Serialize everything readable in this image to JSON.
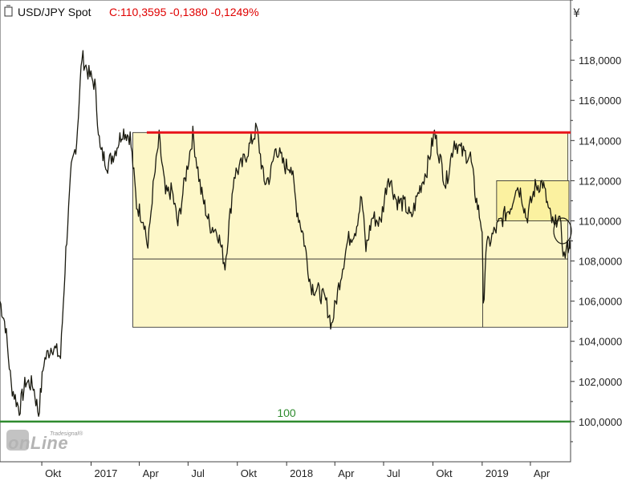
{
  "header": {
    "icon": "page-icon",
    "symbol": "USD/JPY Spot",
    "quote": "C:110,3595 -0,1380 -0,1249%"
  },
  "watermark": {
    "brand_small": "Tradesignal®",
    "brand_main": "onLine"
  },
  "currency_symbol": "¥",
  "colors": {
    "price": "#1a1a10",
    "resistance": "#e8141b",
    "support": "#2e8b2e",
    "label_green": "#2e8b2e",
    "zone_fill": "#fdf7c8",
    "zone_small_fill": "#fbf1a0",
    "quote_red": "#e00000"
  },
  "chart_data": {
    "type": "line",
    "title": "USD/JPY Spot",
    "ylim": [
      98,
      121
    ],
    "y_ticks": [
      {
        "value": 100,
        "label": "100,0000"
      },
      {
        "value": 102,
        "label": "102,0000"
      },
      {
        "value": 104,
        "label": "104,0000"
      },
      {
        "value": 106,
        "label": "106,0000"
      },
      {
        "value": 108,
        "label": "108,0000"
      },
      {
        "value": 110,
        "label": "110,0000"
      },
      {
        "value": 112,
        "label": "112,0000"
      },
      {
        "value": 114,
        "label": "114,0000"
      },
      {
        "value": 116,
        "label": "116,0000"
      },
      {
        "value": 118,
        "label": "118,0000"
      }
    ],
    "x_range": [
      "2016-07-15",
      "2019-06-15"
    ],
    "x_ticks": [
      {
        "date": "2016-10-01",
        "label": "Okt"
      },
      {
        "date": "2017-01-01",
        "label": "2017"
      },
      {
        "date": "2017-04-01",
        "label": "Apr"
      },
      {
        "date": "2017-07-01",
        "label": "Jul"
      },
      {
        "date": "2017-10-01",
        "label": "Okt"
      },
      {
        "date": "2018-01-01",
        "label": "2018"
      },
      {
        "date": "2018-04-01",
        "label": "Apr"
      },
      {
        "date": "2018-07-01",
        "label": "Jul"
      },
      {
        "date": "2018-10-01",
        "label": "Okt"
      },
      {
        "date": "2019-01-01",
        "label": "2019"
      },
      {
        "date": "2019-04-01",
        "label": "Apr"
      }
    ],
    "series": [
      {
        "points": [
          [
            "2016-07-15",
            106.0
          ],
          [
            "2016-07-25",
            104.8
          ],
          [
            "2016-08-05",
            101.8
          ],
          [
            "2016-08-20",
            100.6
          ],
          [
            "2016-09-01",
            102.0
          ],
          [
            "2016-09-15",
            101.8
          ],
          [
            "2016-09-25",
            100.4
          ],
          [
            "2016-10-05",
            103.0
          ],
          [
            "2016-10-20",
            103.8
          ],
          [
            "2016-11-05",
            103.2
          ],
          [
            "2016-11-15",
            108.5
          ],
          [
            "2016-11-25",
            112.5
          ],
          [
            "2016-12-05",
            114.0
          ],
          [
            "2016-12-15",
            118.2
          ],
          [
            "2016-12-28",
            117.3
          ],
          [
            "2017-01-08",
            116.8
          ],
          [
            "2017-01-18",
            113.5
          ],
          [
            "2017-02-01",
            112.8
          ],
          [
            "2017-02-15",
            113.5
          ],
          [
            "2017-03-01",
            114.5
          ],
          [
            "2017-03-15",
            114.2
          ],
          [
            "2017-03-27",
            110.8
          ],
          [
            "2017-04-10",
            110.0
          ],
          [
            "2017-04-17",
            108.6
          ],
          [
            "2017-04-25",
            111.2
          ],
          [
            "2017-05-08",
            114.1
          ],
          [
            "2017-05-20",
            111.3
          ],
          [
            "2017-06-01",
            111.5
          ],
          [
            "2017-06-12",
            109.8
          ],
          [
            "2017-06-25",
            112.0
          ],
          [
            "2017-07-10",
            114.3
          ],
          [
            "2017-07-25",
            111.5
          ],
          [
            "2017-08-10",
            109.8
          ],
          [
            "2017-08-25",
            109.5
          ],
          [
            "2017-09-08",
            107.8
          ],
          [
            "2017-09-25",
            112.3
          ],
          [
            "2017-10-10",
            112.8
          ],
          [
            "2017-10-25",
            113.8
          ],
          [
            "2017-11-06",
            114.6
          ],
          [
            "2017-11-20",
            111.9
          ],
          [
            "2017-12-01",
            112.2
          ],
          [
            "2017-12-12",
            113.7
          ],
          [
            "2017-12-28",
            112.7
          ],
          [
            "2018-01-09",
            112.8
          ],
          [
            "2018-01-20",
            110.6
          ],
          [
            "2018-02-01",
            109.3
          ],
          [
            "2018-02-15",
            106.8
          ],
          [
            "2018-03-01",
            106.5
          ],
          [
            "2018-03-15",
            106.0
          ],
          [
            "2018-03-26",
            104.8
          ],
          [
            "2018-04-10",
            107.0
          ],
          [
            "2018-04-25",
            109.0
          ],
          [
            "2018-05-10",
            109.6
          ],
          [
            "2018-05-21",
            111.2
          ],
          [
            "2018-05-29",
            108.6
          ],
          [
            "2018-06-10",
            110.2
          ],
          [
            "2018-06-25",
            109.9
          ],
          [
            "2018-07-10",
            112.3
          ],
          [
            "2018-07-25",
            111.0
          ],
          [
            "2018-08-10",
            110.8
          ],
          [
            "2018-08-21",
            110.1
          ],
          [
            "2018-09-05",
            111.5
          ],
          [
            "2018-09-20",
            112.6
          ],
          [
            "2018-10-04",
            114.4
          ],
          [
            "2018-10-25",
            111.8
          ],
          [
            "2018-11-10",
            114.0
          ],
          [
            "2018-11-25",
            113.4
          ],
          [
            "2018-12-10",
            113.2
          ],
          [
            "2018-12-20",
            111.2
          ],
          [
            "2019-01-01",
            109.6
          ],
          [
            "2019-01-03",
            105.5
          ],
          [
            "2019-01-08",
            108.6
          ],
          [
            "2019-01-25",
            109.5
          ],
          [
            "2019-02-10",
            110.2
          ],
          [
            "2019-02-25",
            110.8
          ],
          [
            "2019-03-05",
            111.8
          ],
          [
            "2019-03-15",
            111.4
          ],
          [
            "2019-03-25",
            110.1
          ],
          [
            "2019-04-10",
            111.7
          ],
          [
            "2019-04-24",
            111.9
          ],
          [
            "2019-05-06",
            110.4
          ],
          [
            "2019-05-16",
            109.6
          ],
          [
            "2019-05-22",
            110.4
          ],
          [
            "2019-05-28",
            109.5
          ],
          [
            "2019-06-03",
            108.2
          ],
          [
            "2019-06-07",
            108.5
          ],
          [
            "2019-06-12",
            108.9
          ],
          [
            "2019-06-14",
            108.6
          ]
        ]
      }
    ],
    "annotations": {
      "resistance_line": {
        "value": 114.4,
        "from": "2017-04-15",
        "to": "2019-06-15"
      },
      "support_line": {
        "value": 100.0,
        "label": "100"
      },
      "range_box": {
        "from": "2017-03-20",
        "to": "2019-06-10",
        "y_low": 104.7,
        "y_high": 114.4,
        "mid": 108.1
      },
      "range_divider_date": "2019-01-02",
      "small_box": {
        "from": "2019-01-28",
        "to": "2019-06-12",
        "y_low": 110.0,
        "y_high": 112.0
      },
      "circle": {
        "date": "2019-05-31",
        "value": 109.5
      }
    }
  }
}
